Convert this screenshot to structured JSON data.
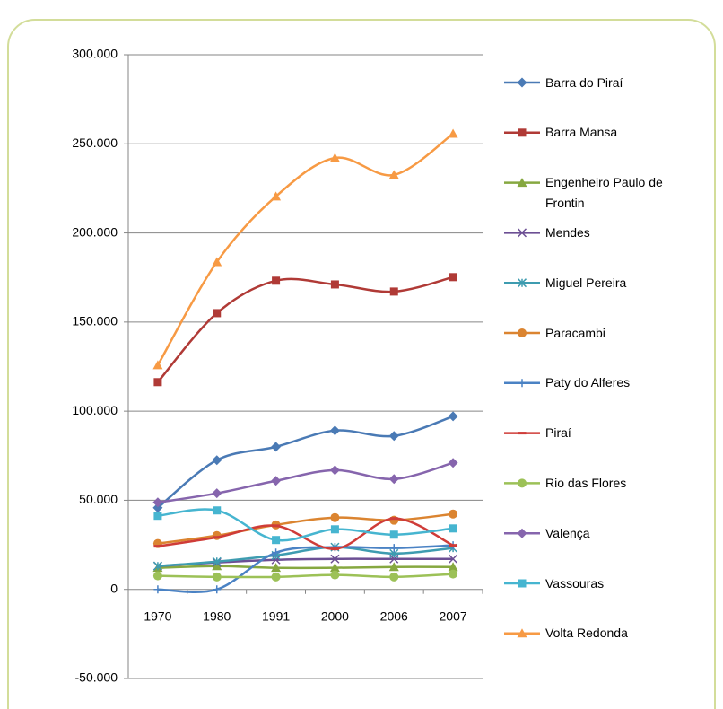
{
  "chart_data": {
    "type": "line",
    "categories": [
      "1970",
      "1980",
      "1991",
      "2000",
      "2006",
      "2007"
    ],
    "ylim": [
      -50000,
      300000
    ],
    "yticks": [
      {
        "value": -50000,
        "label": "-50.000"
      },
      0,
      {
        "value": 50000,
        "label": "50.000"
      },
      {
        "value": 100000,
        "label": "100.000"
      },
      {
        "value": 150000,
        "label": "150.000"
      },
      {
        "value": 200000,
        "label": "200.000"
      },
      {
        "value": 250000,
        "label": "250.000"
      },
      {
        "value": 300000,
        "label": "300.000"
      }
    ],
    "grid": true,
    "smooth": true,
    "legend": "right",
    "series": [
      {
        "name": "Barra do Piraí",
        "color": "#4a7ab5",
        "marker": "diamond",
        "values": [
          45800,
          72500,
          80000,
          89100,
          86100,
          97100
        ]
      },
      {
        "name": "Barra Mansa",
        "color": "#b03a36",
        "marker": "square",
        "values": [
          116300,
          155000,
          173200,
          171100,
          167100,
          175200
        ]
      },
      {
        "name": "Engenheiro Paulo de Frontin",
        "color": "#86a840",
        "marker": "triangle",
        "values": [
          12100,
          13100,
          12100,
          12100,
          12600,
          12600
        ]
      },
      {
        "name": "Mendes",
        "color": "#6c4f94",
        "marker": "x",
        "values": [
          13100,
          15100,
          16600,
          17100,
          17100,
          17100
        ]
      },
      {
        "name": "Miguel Pereira",
        "color": "#3e9cb0",
        "marker": "star",
        "values": [
          13100,
          15600,
          19100,
          23700,
          20100,
          23200
        ]
      },
      {
        "name": "Paracambi",
        "color": "#db8430",
        "marker": "circle",
        "values": [
          25700,
          30200,
          36200,
          40300,
          38800,
          42300
        ]
      },
      {
        "name": "Paty do Alferes",
        "color": "#4a82c4",
        "marker": "plus",
        "values": [
          0,
          0,
          20600,
          23700,
          23200,
          24700
        ]
      },
      {
        "name": "Piraí",
        "color": "#cf3c38",
        "marker": "dash",
        "values": [
          24200,
          29200,
          35700,
          22700,
          39800,
          24700
        ]
      },
      {
        "name": "Rio das Flores",
        "color": "#9cc157",
        "marker": "circle",
        "values": [
          7600,
          7000,
          7000,
          8100,
          7000,
          8600
        ]
      },
      {
        "name": "Valença",
        "color": "#8665ad",
        "marker": "diamond",
        "values": [
          48800,
          53900,
          60900,
          66900,
          61900,
          71000
        ]
      },
      {
        "name": "Vassouras",
        "color": "#46b5d0",
        "marker": "square",
        "values": [
          41300,
          44300,
          27700,
          33700,
          30700,
          34200
        ]
      },
      {
        "name": "Volta Redonda",
        "color": "#f79a44",
        "marker": "triangle",
        "values": [
          125800,
          183700,
          220500,
          242100,
          232600,
          255700
        ]
      }
    ]
  }
}
